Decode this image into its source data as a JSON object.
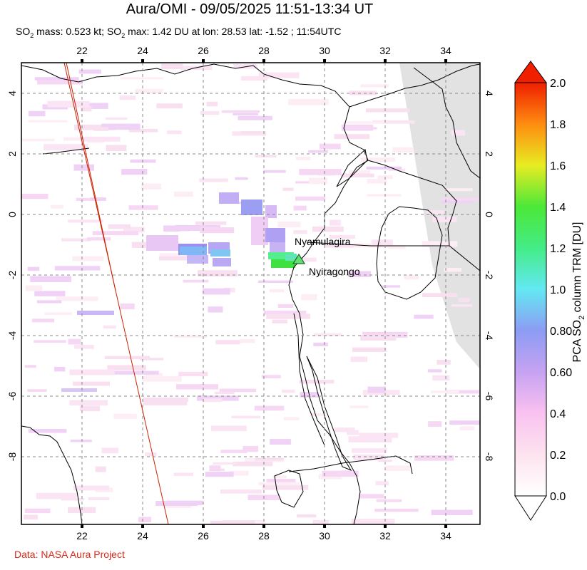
{
  "header": {
    "title": "Aura/OMI - 09/05/2025 11:51-13:34 UT",
    "subtitle_parts": [
      "SO",
      "2",
      " mass: 0.523 kt; SO",
      "2",
      " max: 1.42 DU at lon: 28.53 lat: -1.52 ; 11:54UTC"
    ]
  },
  "map": {
    "lon_ticks": [
      "22",
      "24",
      "26",
      "28",
      "30",
      "32",
      "34"
    ],
    "lat_ticks": [
      "4",
      "2",
      "0",
      "-2",
      "-4",
      "-6",
      "-8"
    ],
    "volcanoes": [
      {
        "name": "Nyamulagira",
        "lon": 29.2,
        "lat": -1.4
      },
      {
        "name": "Nyiragongo",
        "lon": 29.25,
        "lat": -1.52
      }
    ],
    "max_location": {
      "lon": 28.53,
      "lat": -1.52,
      "value_du": 1.42
    }
  },
  "colorbar": {
    "label_parts": [
      "PCA SO",
      "2",
      " column TRM [DU]"
    ],
    "ticks": [
      "2.0",
      "1.8",
      "1.6",
      "1.4",
      "1.2",
      "1.0",
      "0.80",
      "0.60",
      "0.4",
      "0.2",
      "0.0"
    ],
    "range": [
      0,
      2.0
    ]
  },
  "footer": {
    "credit": "Data: NASA Aura Project"
  },
  "colors": {
    "credit": "#d42a1a",
    "orbit_line": "#cc2200",
    "volcano_marker": "#1a9a2a"
  }
}
